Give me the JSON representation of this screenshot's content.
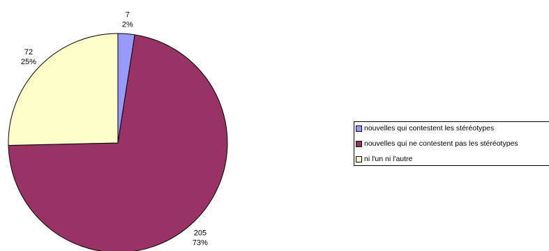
{
  "chart_data": {
    "type": "pie",
    "categories": [
      "nouvelles qui contestent les stéréotypes",
      "nouvelles qui ne contestent pas les stéréotypes",
      "ni l'un ni l'autre"
    ],
    "values": [
      7,
      205,
      72
    ],
    "percent_labels": [
      "2%",
      "73%",
      "25%"
    ],
    "colors": [
      "#9999ff",
      "#993366",
      "#ffffcc"
    ],
    "title": "",
    "legend_position": "right"
  }
}
